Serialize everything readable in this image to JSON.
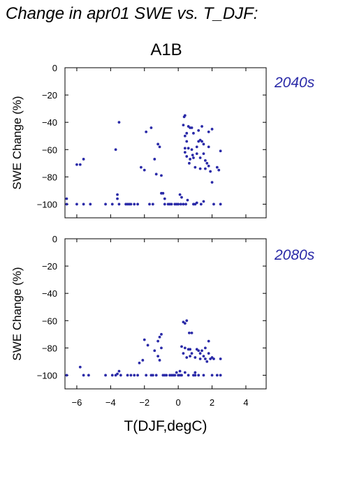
{
  "figure": {
    "title": "Change in apr01 SWE vs. T_DJF:",
    "subtitle": "A1B"
  },
  "colors": {
    "points": "#2a2aa8",
    "period_text": "#2a2aa8"
  },
  "chart_data": [
    {
      "type": "scatter",
      "period_label": "2040s",
      "ylabel": "SWE Change (%)",
      "xlabel": "",
      "xlim": [
        -6.7,
        5.2
      ],
      "ylim": [
        -110,
        0
      ],
      "xticks": [
        -6,
        -4,
        -2,
        0,
        2,
        4
      ],
      "yticks": [
        0,
        -20,
        -40,
        -60,
        -80,
        -100
      ],
      "points": [
        [
          -6.6,
          -96
        ],
        [
          -6.6,
          -100
        ],
        [
          -6.0,
          -71
        ],
        [
          -5.8,
          -71
        ],
        [
          -5.6,
          -67
        ],
        [
          -6.0,
          -100
        ],
        [
          -5.6,
          -100
        ],
        [
          -5.2,
          -100
        ],
        [
          -4.3,
          -100
        ],
        [
          -3.9,
          -100
        ],
        [
          -3.7,
          -60
        ],
        [
          -3.6,
          -96
        ],
        [
          -3.5,
          -40
        ],
        [
          -3.6,
          -93
        ],
        [
          -3.5,
          -100
        ],
        [
          -3.1,
          -100
        ],
        [
          -3.0,
          -100
        ],
        [
          -2.9,
          -100
        ],
        [
          -2.8,
          -100
        ],
        [
          -2.6,
          -100
        ],
        [
          -2.4,
          -100
        ],
        [
          -2.2,
          -73
        ],
        [
          -2.0,
          -75
        ],
        [
          -1.9,
          -47
        ],
        [
          -1.6,
          -44
        ],
        [
          -1.7,
          -100
        ],
        [
          -1.5,
          -100
        ],
        [
          -1.4,
          -67
        ],
        [
          -1.3,
          -78
        ],
        [
          -1.2,
          -56
        ],
        [
          -1.1,
          -58
        ],
        [
          -1.0,
          -92
        ],
        [
          -1.0,
          -79
        ],
        [
          -0.9,
          -92
        ],
        [
          -0.8,
          -96
        ],
        [
          -0.8,
          -100
        ],
        [
          -0.6,
          -100
        ],
        [
          -0.5,
          -100
        ],
        [
          -0.4,
          -100
        ],
        [
          -0.2,
          -100
        ],
        [
          -0.1,
          -100
        ],
        [
          0.0,
          -100
        ],
        [
          0.1,
          -93
        ],
        [
          0.15,
          -100
        ],
        [
          0.2,
          -95
        ],
        [
          0.3,
          -42
        ],
        [
          0.3,
          -100
        ],
        [
          0.35,
          -36
        ],
        [
          0.4,
          -35
        ],
        [
          0.4,
          -50
        ],
        [
          0.4,
          -62
        ],
        [
          0.4,
          -59
        ],
        [
          0.45,
          -100
        ],
        [
          0.5,
          -48
        ],
        [
          0.5,
          -54
        ],
        [
          0.5,
          -65
        ],
        [
          0.55,
          -97
        ],
        [
          0.6,
          -43
        ],
        [
          0.6,
          -59
        ],
        [
          0.65,
          -70
        ],
        [
          0.7,
          -44
        ],
        [
          0.7,
          -67
        ],
        [
          0.8,
          -44
        ],
        [
          0.8,
          -60
        ],
        [
          0.85,
          -64
        ],
        [
          0.9,
          -48
        ],
        [
          0.9,
          -66
        ],
        [
          0.9,
          -100
        ],
        [
          1.0,
          -73
        ],
        [
          1.0,
          -100
        ],
        [
          1.1,
          -58
        ],
        [
          1.1,
          -63
        ],
        [
          1.2,
          -46
        ],
        [
          1.2,
          -54
        ],
        [
          1.3,
          -53
        ],
        [
          1.3,
          -66
        ],
        [
          1.3,
          -74
        ],
        [
          1.35,
          -100
        ],
        [
          1.4,
          -43
        ],
        [
          1.4,
          -54
        ],
        [
          1.5,
          -56
        ],
        [
          1.5,
          -63
        ],
        [
          1.6,
          -68
        ],
        [
          1.6,
          -74
        ],
        [
          1.7,
          -70
        ],
        [
          1.8,
          -58
        ],
        [
          1.8,
          -47
        ],
        [
          1.8,
          -72
        ],
        [
          1.9,
          -76
        ],
        [
          2.0,
          -45
        ],
        [
          2.0,
          -84
        ],
        [
          2.1,
          -100
        ],
        [
          2.3,
          -73
        ],
        [
          2.4,
          -75
        ],
        [
          2.5,
          -61
        ],
        [
          2.5,
          -100
        ],
        [
          1.5,
          -98
        ],
        [
          1.1,
          -99
        ]
      ]
    },
    {
      "type": "scatter",
      "period_label": "2080s",
      "ylabel": "SWE Change (%)",
      "xlabel": "T(DJF,degC)",
      "xlim": [
        -6.7,
        5.2
      ],
      "ylim": [
        -110,
        0
      ],
      "xticks": [
        -6,
        -4,
        -2,
        0,
        2,
        4
      ],
      "yticks": [
        0,
        -20,
        -40,
        -60,
        -80,
        -100
      ],
      "points": [
        [
          -6.6,
          -100
        ],
        [
          -5.8,
          -94
        ],
        [
          -5.6,
          -100
        ],
        [
          -5.3,
          -100
        ],
        [
          -4.3,
          -100
        ],
        [
          -3.9,
          -100
        ],
        [
          -3.7,
          -100
        ],
        [
          -3.6,
          -99
        ],
        [
          -3.5,
          -97
        ],
        [
          -3.4,
          -100
        ],
        [
          -3.0,
          -100
        ],
        [
          -2.8,
          -100
        ],
        [
          -2.6,
          -100
        ],
        [
          -2.4,
          -100
        ],
        [
          -2.3,
          -91
        ],
        [
          -2.1,
          -89
        ],
        [
          -2.0,
          -74
        ],
        [
          -1.9,
          -100
        ],
        [
          -1.8,
          -78
        ],
        [
          -1.6,
          -100
        ],
        [
          -1.5,
          -100
        ],
        [
          -1.4,
          -82
        ],
        [
          -1.3,
          -100
        ],
        [
          -1.2,
          -75
        ],
        [
          -1.2,
          -86
        ],
        [
          -1.1,
          -89
        ],
        [
          -1.1,
          -72
        ],
        [
          -1.0,
          -70
        ],
        [
          -1.0,
          -80
        ],
        [
          -0.9,
          -100
        ],
        [
          -0.8,
          -100
        ],
        [
          -0.7,
          -100
        ],
        [
          -0.5,
          -100
        ],
        [
          -0.4,
          -100
        ],
        [
          -0.2,
          -100
        ],
        [
          -0.1,
          -98
        ],
        [
          0.0,
          -100
        ],
        [
          0.1,
          -97
        ],
        [
          0.2,
          -100
        ],
        [
          0.2,
          -79
        ],
        [
          0.3,
          -61
        ],
        [
          0.3,
          -84
        ],
        [
          0.4,
          -62
        ],
        [
          0.4,
          -80
        ],
        [
          0.4,
          -98
        ],
        [
          0.5,
          -60
        ],
        [
          0.5,
          -87
        ],
        [
          0.6,
          -81
        ],
        [
          0.6,
          -100
        ],
        [
          0.65,
          -69
        ],
        [
          0.7,
          -81
        ],
        [
          0.7,
          -86
        ],
        [
          0.8,
          -69
        ],
        [
          0.8,
          -84
        ],
        [
          0.9,
          -100
        ],
        [
          1.0,
          -98
        ],
        [
          1.0,
          -87
        ],
        [
          1.1,
          -81
        ],
        [
          1.2,
          -82
        ],
        [
          1.3,
          -88
        ],
        [
          1.3,
          -84
        ],
        [
          1.4,
          -82
        ],
        [
          1.5,
          -86
        ],
        [
          1.5,
          -100
        ],
        [
          1.6,
          -88
        ],
        [
          1.6,
          -80
        ],
        [
          1.7,
          -90
        ],
        [
          1.8,
          -84
        ],
        [
          1.8,
          -75
        ],
        [
          1.9,
          -88
        ],
        [
          2.0,
          -87
        ],
        [
          2.0,
          -100
        ],
        [
          2.1,
          -88
        ],
        [
          2.3,
          -100
        ],
        [
          2.5,
          -88
        ],
        [
          2.5,
          -100
        ],
        [
          1.2,
          -100
        ],
        [
          1.0,
          -100
        ],
        [
          0.1,
          -100
        ],
        [
          -0.3,
          -100
        ]
      ]
    }
  ]
}
